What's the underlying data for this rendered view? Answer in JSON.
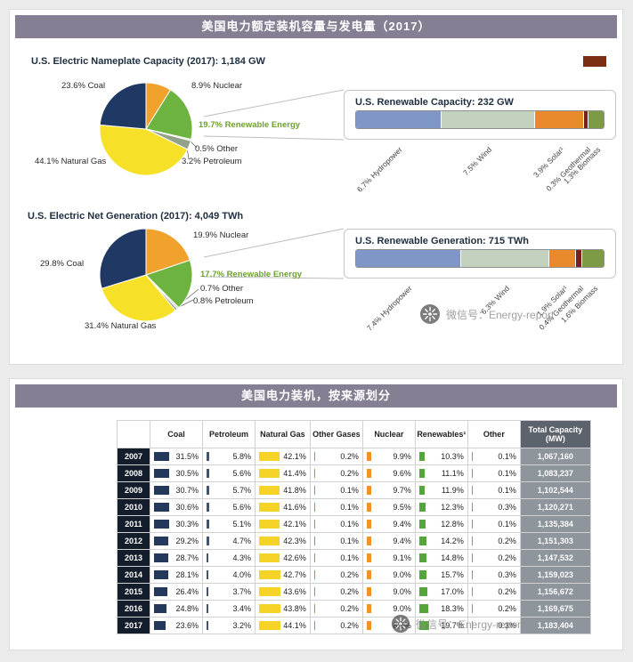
{
  "top_panel": {
    "header": "美国电力额定装机容量与发电量（2017）"
  },
  "bottom_panel": {
    "header": "美国电力装机，按来源划分"
  },
  "watermark": {
    "text": "微信号：Energy-report"
  },
  "accent_colors": {
    "panel_header_bg": "#867f93",
    "corner_mark": "#7b2d12",
    "renewable_text_green": "#6da12e"
  },
  "chart_data": [
    {
      "id": "us_capacity_pie_2017",
      "type": "pie",
      "title": "U.S. Electric Nameplate Capacity (2017): 1,184 GW",
      "unit": "percent",
      "slices": [
        {
          "name": "Nuclear",
          "value": 8.9,
          "label": "8.9% Nuclear",
          "color": "#f0a22c"
        },
        {
          "name": "Renewable Energy",
          "value": 19.7,
          "label": "19.7% Renewable Energy",
          "color": "#6db33f"
        },
        {
          "name": "Other",
          "value": 0.5,
          "label": "0.5% Other",
          "color": "#cdd1c4"
        },
        {
          "name": "Petroleum",
          "value": 3.2,
          "label": "3.2% Petroleum",
          "color": "#93a08a"
        },
        {
          "name": "Natural Gas",
          "value": 44.1,
          "label": "44.1% Natural Gas",
          "color": "#f7e028"
        },
        {
          "name": "Coal",
          "value": 23.6,
          "label": "23.6% Coal",
          "color": "#1f3864"
        }
      ]
    },
    {
      "id": "us_renewable_capacity_bar_2017",
      "type": "bar",
      "orientation": "horizontal-stacked",
      "title": "U.S. Renewable Capacity: 232 GW",
      "unit": "percent",
      "segments": [
        {
          "name": "Hydropower",
          "value": 6.7,
          "label": "6.7% Hydropower",
          "color": "#7f96c6"
        },
        {
          "name": "Wind",
          "value": 7.5,
          "label": "7.5% Wind",
          "color": "#c3d2bf"
        },
        {
          "name": "Solar",
          "value": 3.9,
          "label": "3.9% Solar¹",
          "color": "#e8892b"
        },
        {
          "name": "Geothermal",
          "value": 0.3,
          "label": "0.3% Geothermal",
          "color": "#7a1f1f"
        },
        {
          "name": "Biomass",
          "value": 1.3,
          "label": "1.3% Biomass",
          "color": "#7d9b44"
        }
      ]
    },
    {
      "id": "us_generation_pie_2017",
      "type": "pie",
      "title": "U.S. Electric Net Generation (2017): 4,049 TWh",
      "unit": "percent",
      "slices": [
        {
          "name": "Nuclear",
          "value": 19.9,
          "label": "19.9% Nuclear",
          "color": "#f0a22c"
        },
        {
          "name": "Renewable Energy",
          "value": 17.7,
          "label": "17.7% Renewable Energy",
          "color": "#6db33f"
        },
        {
          "name": "Other",
          "value": 0.7,
          "label": "0.7% Other",
          "color": "#cdd1c4"
        },
        {
          "name": "Petroleum",
          "value": 0.8,
          "label": "0.8% Petroleum",
          "color": "#93a08a"
        },
        {
          "name": "Natural Gas",
          "value": 31.4,
          "label": "31.4% Natural Gas",
          "color": "#f7e028"
        },
        {
          "name": "Coal",
          "value": 29.8,
          "label": "29.8% Coal",
          "color": "#1f3864"
        }
      ]
    },
    {
      "id": "us_renewable_generation_bar_2017",
      "type": "bar",
      "orientation": "horizontal-stacked",
      "title": "U.S. Renewable Generation: 715 TWh",
      "unit": "percent",
      "segments": [
        {
          "name": "Hydropower",
          "value": 7.4,
          "label": "7.4% Hydropower",
          "color": "#7f96c6"
        },
        {
          "name": "Wind",
          "value": 6.3,
          "label": "6.3% Wind",
          "color": "#c3d2bf"
        },
        {
          "name": "Solar",
          "value": 1.9,
          "label": "1.9% Solar¹",
          "color": "#e8892b"
        },
        {
          "name": "Geothermal",
          "value": 0.4,
          "label": "0.4% Geothermal",
          "color": "#7a1f1f"
        },
        {
          "name": "Biomass",
          "value": 1.6,
          "label": "1.6% Biomass",
          "color": "#7d9b44"
        }
      ]
    },
    {
      "id": "us_capacity_by_source_table",
      "type": "table",
      "columns": [
        "",
        "Coal",
        "Petroleum",
        "Natural Gas",
        "Other Gases",
        "Nuclear",
        "Renewables¹",
        "Other",
        "Total Capacity (MW)"
      ],
      "bar_colors": [
        "#24385c",
        "#44546a",
        "#f5d327",
        "#e07b28",
        "#f09329",
        "#55a63a",
        "#8c9196"
      ],
      "rows": [
        {
          "year": "2007",
          "values": [
            31.5,
            5.8,
            42.1,
            0.2,
            9.9,
            10.3,
            0.1
          ],
          "total": "1,067,160"
        },
        {
          "year": "2008",
          "values": [
            30.5,
            5.6,
            41.4,
            0.2,
            9.6,
            11.1,
            0.1
          ],
          "total": "1,083,237"
        },
        {
          "year": "2009",
          "values": [
            30.7,
            5.7,
            41.8,
            0.1,
            9.7,
            11.9,
            0.1
          ],
          "total": "1,102,544"
        },
        {
          "year": "2010",
          "values": [
            30.6,
            5.6,
            41.6,
            0.1,
            9.5,
            12.3,
            0.3
          ],
          "total": "1,120,271"
        },
        {
          "year": "2011",
          "values": [
            30.3,
            5.1,
            42.1,
            0.1,
            9.4,
            12.8,
            0.1
          ],
          "total": "1,135,384"
        },
        {
          "year": "2012",
          "values": [
            29.2,
            4.7,
            42.3,
            0.1,
            9.4,
            14.2,
            0.2
          ],
          "total": "1,151,303"
        },
        {
          "year": "2013",
          "values": [
            28.7,
            4.3,
            42.6,
            0.1,
            9.1,
            14.8,
            0.2
          ],
          "total": "1,147,532"
        },
        {
          "year": "2014",
          "values": [
            28.1,
            4.0,
            42.7,
            0.2,
            9.0,
            15.7,
            0.3
          ],
          "total": "1,159,023"
        },
        {
          "year": "2015",
          "values": [
            26.4,
            3.7,
            43.6,
            0.2,
            9.0,
            17.0,
            0.2
          ],
          "total": "1,156,672"
        },
        {
          "year": "2016",
          "values": [
            24.8,
            3.4,
            43.8,
            0.2,
            9.0,
            18.3,
            0.2
          ],
          "total": "1,169,675"
        },
        {
          "year": "2017",
          "values": [
            23.6,
            3.2,
            44.1,
            0.2,
            8.9,
            19.7,
            0.3
          ],
          "total": "1,183,404"
        }
      ]
    }
  ]
}
